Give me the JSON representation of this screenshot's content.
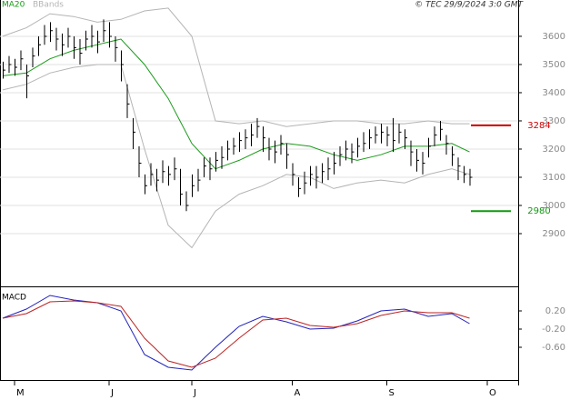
{
  "credit": "© TEC 29/9/2024 3:0 GMT",
  "chart_data": [
    {
      "type": "ohlc",
      "x": [
        0,
        1,
        2,
        3,
        4,
        5,
        6,
        7,
        8,
        9,
        10,
        11,
        12,
        13,
        14,
        15,
        16,
        17,
        18,
        19,
        20,
        21,
        22,
        23,
        24,
        25,
        26,
        27,
        28,
        29,
        30,
        31,
        32,
        33,
        34,
        35,
        36,
        37,
        38,
        39,
        40,
        41,
        42,
        43,
        44,
        45,
        46,
        47,
        48,
        49,
        50,
        51,
        52,
        53,
        54,
        55,
        56,
        57,
        58,
        59,
        60,
        61,
        62,
        63,
        64,
        65,
        66,
        67,
        68,
        69,
        70,
        71,
        72,
        73,
        74,
        75,
        76,
        77,
        78,
        79
      ],
      "high": [
        3510,
        3530,
        3520,
        3550,
        3500,
        3560,
        3600,
        3640,
        3650,
        3630,
        3610,
        3630,
        3600,
        3590,
        3620,
        3640,
        3620,
        3660,
        3650,
        3600,
        3550,
        3430,
        3310,
        3210,
        3110,
        3150,
        3130,
        3160,
        3140,
        3170,
        3130,
        3050,
        3110,
        3130,
        3170,
        3170,
        3190,
        3210,
        3230,
        3240,
        3260,
        3270,
        3290,
        3310,
        3280,
        3240,
        3230,
        3250,
        3220,
        3150,
        3100,
        3120,
        3140,
        3140,
        3150,
        3170,
        3190,
        3210,
        3230,
        3220,
        3240,
        3260,
        3270,
        3280,
        3290,
        3280,
        3310,
        3290,
        3270,
        3230,
        3200,
        3190,
        3240,
        3280,
        3300,
        3250,
        3210,
        3170,
        3140,
        3130
      ],
      "low": [
        3450,
        3470,
        3460,
        3480,
        3380,
        3490,
        3530,
        3570,
        3580,
        3550,
        3530,
        3560,
        3520,
        3500,
        3550,
        3560,
        3540,
        3580,
        3560,
        3510,
        3440,
        3310,
        3200,
        3100,
        3040,
        3070,
        3050,
        3080,
        3070,
        3090,
        3000,
        2980,
        3030,
        3050,
        3100,
        3090,
        3120,
        3130,
        3160,
        3180,
        3190,
        3200,
        3210,
        3240,
        3190,
        3160,
        3150,
        3180,
        3130,
        3070,
        3030,
        3040,
        3070,
        3060,
        3080,
        3090,
        3110,
        3140,
        3160,
        3150,
        3170,
        3190,
        3200,
        3220,
        3220,
        3210,
        3190,
        3220,
        3200,
        3140,
        3120,
        3110,
        3170,
        3210,
        3230,
        3180,
        3140,
        3090,
        3080,
        3070
      ],
      "close": [
        3480,
        3500,
        3490,
        3520,
        3460,
        3530,
        3570,
        3600,
        3620,
        3590,
        3570,
        3600,
        3560,
        3540,
        3590,
        3600,
        3580,
        3620,
        3600,
        3560,
        3500,
        3360,
        3260,
        3150,
        3070,
        3110,
        3090,
        3120,
        3110,
        3130,
        3040,
        3000,
        3070,
        3090,
        3140,
        3130,
        3160,
        3170,
        3200,
        3210,
        3230,
        3240,
        3250,
        3280,
        3240,
        3200,
        3190,
        3220,
        3180,
        3110,
        3060,
        3080,
        3110,
        3100,
        3120,
        3130,
        3150,
        3180,
        3200,
        3190,
        3210,
        3220,
        3240,
        3250,
        3260,
        3250,
        3230,
        3260,
        3240,
        3190,
        3160,
        3150,
        3210,
        3250,
        3270,
        3220,
        3180,
        3140,
        3110,
        3100
      ],
      "bar_color": "#000000",
      "series": [
        {
          "name": "MA20",
          "color": "#1a9a1a",
          "x": [
            0,
            4,
            8,
            12,
            16,
            20,
            24,
            28,
            32,
            36,
            40,
            44,
            48,
            52,
            56,
            60,
            64,
            68,
            72,
            76,
            79
          ],
          "values": [
            3460,
            3470,
            3520,
            3550,
            3570,
            3590,
            3500,
            3380,
            3220,
            3130,
            3160,
            3200,
            3220,
            3210,
            3180,
            3160,
            3180,
            3210,
            3210,
            3220,
            3190
          ]
        },
        {
          "name": "BBands",
          "color": "#b4b4b4",
          "x": [
            0,
            4,
            8,
            12,
            16,
            20,
            24,
            28,
            32,
            36,
            40,
            44,
            48,
            52,
            56,
            60,
            64,
            68,
            72,
            76,
            79
          ],
          "values": [
            3600,
            3630,
            3680,
            3670,
            3650,
            3660,
            3690,
            3700,
            3600,
            3300,
            3290,
            3300,
            3280,
            3290,
            3300,
            3300,
            3290,
            3290,
            3300,
            3290,
            3290
          ],
          "lower": [
            3410,
            3430,
            3470,
            3490,
            3500,
            3500,
            3200,
            2930,
            2850,
            2980,
            3040,
            3070,
            3110,
            3100,
            3060,
            3080,
            3090,
            3080,
            3110,
            3130,
            3110
          ]
        }
      ],
      "levels": [
        {
          "value": 3284,
          "color": "#cc0000"
        },
        {
          "value": 2980,
          "color": "#119911"
        }
      ],
      "xlim": [
        -0.46,
        87.23
      ],
      "xticks": [
        {
          "value": 2,
          "label": "M"
        },
        {
          "value": 18,
          "label": "J"
        },
        {
          "value": 32,
          "label": "J"
        },
        {
          "value": 49,
          "label": "A"
        },
        {
          "value": 65,
          "label": "S"
        },
        {
          "value": 82,
          "label": "O"
        }
      ],
      "ylim": [
        2713,
        3703
      ],
      "yticks": [
        2900,
        3000,
        3100,
        3200,
        3300,
        3400,
        3500,
        3600
      ],
      "grid": true
    },
    {
      "type": "line",
      "title": "MACD",
      "series": [
        {
          "color": "#2222bb",
          "x": [
            0,
            4,
            8,
            12,
            16,
            20,
            24,
            28,
            32,
            36,
            40,
            44,
            48,
            52,
            56,
            60,
            64,
            68,
            72,
            76,
            79
          ],
          "values": [
            0.04,
            0.24,
            0.54,
            0.44,
            0.38,
            0.2,
            -0.76,
            -1.04,
            -1.1,
            -0.6,
            -0.14,
            0.08,
            -0.04,
            -0.2,
            -0.18,
            -0.02,
            0.2,
            0.24,
            0.08,
            0.14,
            -0.08
          ]
        },
        {
          "color": "#bb2222",
          "x": [
            0,
            4,
            8,
            12,
            16,
            20,
            24,
            28,
            32,
            36,
            40,
            44,
            48,
            52,
            56,
            60,
            64,
            68,
            72,
            76,
            79
          ],
          "values": [
            0.04,
            0.14,
            0.4,
            0.42,
            0.38,
            0.3,
            -0.4,
            -0.9,
            -1.04,
            -0.84,
            -0.4,
            0,
            0.04,
            -0.12,
            -0.16,
            -0.08,
            0.1,
            0.2,
            0.16,
            0.16,
            0.04
          ]
        }
      ],
      "xlim": [
        -0.46,
        87.23
      ],
      "ylim": [
        -1.32,
        0.68
      ],
      "yticks": [
        {
          "value": 0.2,
          "label": "0.20"
        },
        {
          "value": -0.2,
          "label": "-0.20"
        },
        {
          "value": -0.6,
          "label": "-0.60"
        }
      ],
      "grid": false
    }
  ]
}
